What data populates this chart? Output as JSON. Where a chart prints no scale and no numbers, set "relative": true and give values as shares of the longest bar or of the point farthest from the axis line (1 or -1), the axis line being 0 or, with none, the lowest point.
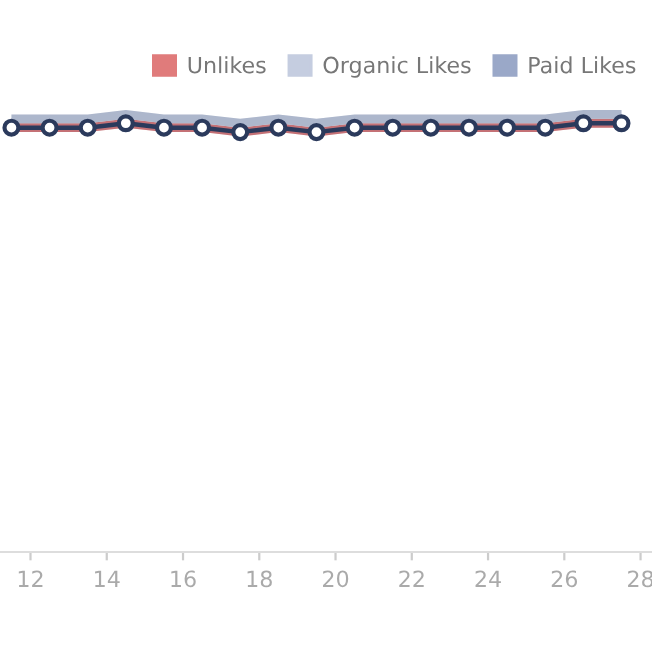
{
  "chart_data": {
    "type": "line",
    "relative": true,
    "x": [
      11.5,
      12.5,
      13.5,
      14.5,
      15.5,
      16.5,
      17.5,
      18.5,
      19.5,
      20.5,
      21.5,
      22.5,
      23.5,
      24.5,
      25.5,
      26.5,
      27.5
    ],
    "xlim": [
      11.2,
      28.3
    ],
    "xticks": [
      12,
      14,
      16,
      18,
      20,
      22,
      24,
      26,
      28
    ],
    "legend": "top right",
    "line_style": "solid",
    "series": [
      {
        "color": "#2b3a5c",
        "marker": "circle",
        "values": [
          0.96,
          0.96,
          0.96,
          0.97,
          0.96,
          0.96,
          0.95,
          0.96,
          0.95,
          0.96,
          0.96,
          0.96,
          0.96,
          0.96,
          0.96,
          0.97,
          0.97
        ],
        "lower": [
          0.95,
          0.95,
          0.95,
          0.96,
          0.95,
          0.95,
          0.94,
          0.95,
          0.94,
          0.95,
          0.95,
          0.95,
          0.95,
          0.95,
          0.95,
          0.96,
          0.96
        ],
        "upper": [
          0.99,
          0.99,
          0.99,
          1.0,
          0.99,
          0.99,
          0.98,
          0.99,
          0.98,
          0.99,
          0.99,
          0.99,
          0.99,
          0.99,
          0.99,
          1.0,
          1.0
        ]
      },
      {
        "name": "Unlikes",
        "type": "area",
        "color": "#e07b7b",
        "values": [
          0.97,
          0.97,
          0.97,
          0.98,
          0.97,
          0.97,
          0.96,
          0.97,
          0.96,
          0.97,
          0.97,
          0.97,
          0.97,
          0.97,
          0.97,
          0.98,
          0.98
        ]
      },
      {
        "name": "Organic Likes",
        "type": "area",
        "color": "#c5cde0",
        "values": [
          0.99,
          0.99,
          0.99,
          1.0,
          0.99,
          0.99,
          0.98,
          0.99,
          0.98,
          0.99,
          0.99,
          0.99,
          0.99,
          0.99,
          0.99,
          1.0,
          1.0
        ]
      },
      {
        "name": "Paid Likes",
        "type": "area",
        "color": "#9aa8c8",
        "values": [
          null,
          null,
          null,
          null,
          null,
          null,
          null,
          null,
          null,
          null,
          null,
          null,
          null,
          null,
          null,
          null,
          null
        ]
      }
    ]
  }
}
